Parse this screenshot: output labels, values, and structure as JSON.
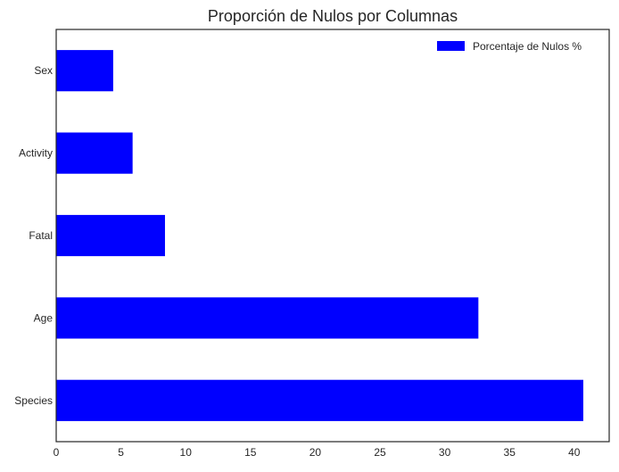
{
  "chart_data": {
    "type": "bar",
    "orientation": "horizontal",
    "title": "Proporción de Nulos por Columnas",
    "xlabel": "",
    "ylabel": "",
    "categories": [
      "Species",
      "Age",
      "Fatal",
      "Activity",
      "Sex"
    ],
    "series": [
      {
        "name": "Porcentaje de Nulos %",
        "values": [
          40.7,
          32.6,
          8.4,
          5.9,
          4.4
        ],
        "color": "#0000ff"
      }
    ],
    "xlim": [
      0,
      42.7
    ],
    "xticks": [
      0,
      5,
      10,
      15,
      20,
      25,
      30,
      35,
      40
    ],
    "grid": false,
    "legend": "top-right"
  }
}
